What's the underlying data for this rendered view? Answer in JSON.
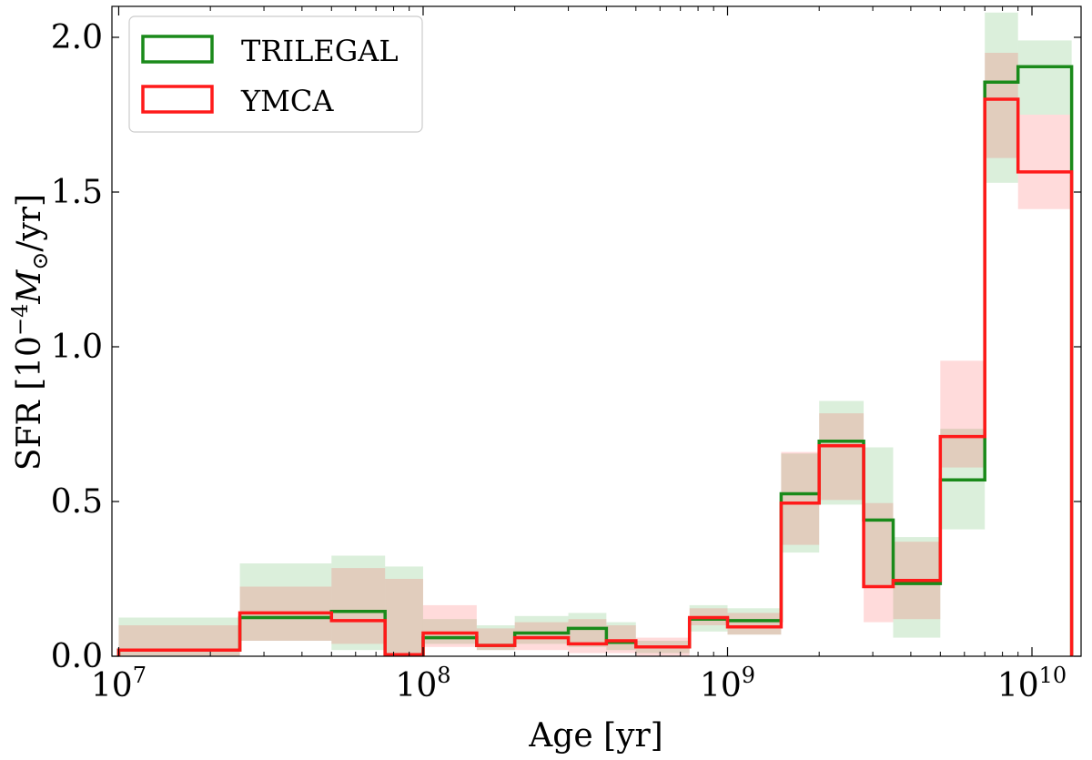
{
  "chart_data": {
    "type": "line",
    "step_histogram": true,
    "xscale": "log",
    "xlim": [
      9500000,
      14500000000
    ],
    "ylim": [
      0,
      2.1
    ],
    "xlabel": "Age [yr]",
    "ylabel_parts": {
      "pre": "SFR [10",
      "exp": "−4",
      "m": "M",
      "sub": "⊙",
      "post": "/yr]"
    },
    "yticks": [
      {
        "value": 0.0,
        "label": "0.0"
      },
      {
        "value": 0.5,
        "label": "0.5"
      },
      {
        "value": 1.0,
        "label": "1.0"
      },
      {
        "value": 1.5,
        "label": "1.5"
      },
      {
        "value": 2.0,
        "label": "2.0"
      }
    ],
    "xticks": [
      {
        "value": 10000000,
        "base": "10",
        "exp": "7"
      },
      {
        "value": 100000000,
        "base": "10",
        "exp": "8"
      },
      {
        "value": 1000000000,
        "base": "10",
        "exp": "9"
      },
      {
        "value": 10000000000,
        "base": "10",
        "exp": "10"
      }
    ],
    "bin_edges": [
      10000000,
      25000000,
      50000000,
      75000000,
      100000000,
      150000000,
      200000000,
      300000000,
      400000000,
      500000000,
      750000000,
      1000000000,
      1500000000,
      2000000000,
      2800000000,
      3500000000,
      5000000000,
      7000000000,
      9000000000,
      13500000000
    ],
    "legend_position": "upper-left",
    "series": [
      {
        "name": "TRILEGAL",
        "color": "#1a8a1a",
        "band_color": "rgba(40,160,40,0.17)",
        "values": [
          0.02,
          0.125,
          0.145,
          0.005,
          0.06,
          0.035,
          0.075,
          0.09,
          0.045,
          0.03,
          0.12,
          0.115,
          0.525,
          0.695,
          0.44,
          0.235,
          0.57,
          1.855,
          1.905
        ],
        "lower": [
          0.0,
          0.05,
          0.02,
          0.0,
          0.04,
          0.02,
          0.04,
          0.03,
          0.02,
          0.01,
          0.08,
          0.07,
          0.335,
          0.49,
          0.225,
          0.06,
          0.41,
          1.53,
          1.75
        ],
        "upper": [
          0.125,
          0.3,
          0.325,
          0.29,
          0.12,
          0.1,
          0.13,
          0.14,
          0.11,
          0.05,
          0.165,
          0.155,
          0.655,
          0.825,
          0.675,
          0.385,
          0.735,
          2.08,
          1.99
        ]
      },
      {
        "name": "YMCA",
        "color": "#ff1a1a",
        "band_color": "rgba(255,40,40,0.17)",
        "values": [
          0.02,
          0.14,
          0.115,
          0.005,
          0.075,
          0.035,
          0.06,
          0.04,
          0.05,
          0.03,
          0.125,
          0.095,
          0.495,
          0.68,
          0.225,
          0.245,
          0.71,
          1.8,
          1.565
        ],
        "lower": [
          0.0,
          0.05,
          0.04,
          0.0,
          0.03,
          0.02,
          0.02,
          0.01,
          0.01,
          0.0,
          0.1,
          0.07,
          0.36,
          0.505,
          0.11,
          0.12,
          0.61,
          1.61,
          1.445
        ],
        "upper": [
          0.1,
          0.225,
          0.285,
          0.25,
          0.165,
          0.09,
          0.11,
          0.12,
          0.1,
          0.06,
          0.155,
          0.14,
          0.66,
          0.785,
          0.495,
          0.37,
          0.955,
          1.95,
          1.75
        ]
      }
    ]
  }
}
